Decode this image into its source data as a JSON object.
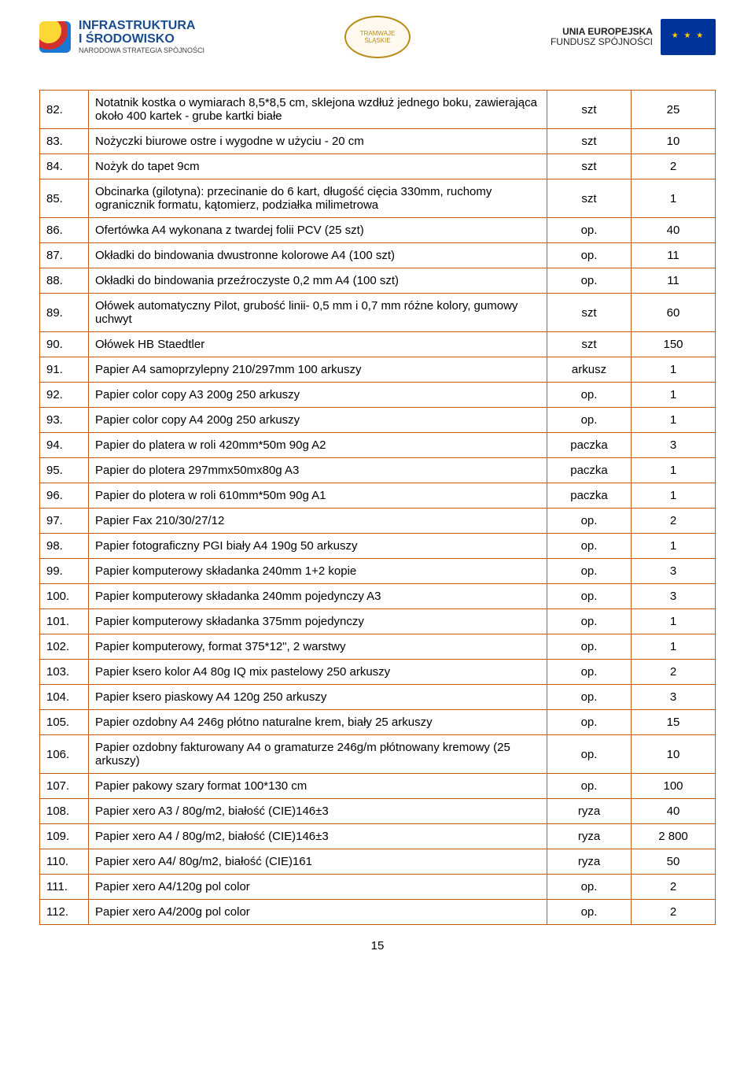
{
  "header": {
    "left": {
      "title_line1": "INFRASTRUKTURA",
      "title_line2": "I ŚRODOWISKO",
      "subtitle": "NARODOWA STRATEGIA SPÓJNOŚCI"
    },
    "center": {
      "label": "TRAMWAJE ŚLĄSKIE"
    },
    "right": {
      "line1": "UNIA EUROPEJSKA",
      "line2": "FUNDUSZ SPÓJNOŚCI"
    }
  },
  "table": {
    "rows": [
      {
        "num": "82.",
        "desc": "Notatnik kostka o wymiarach 8,5*8,5 cm, sklejona wzdłuż jednego boku, zawierająca około 400 kartek - grube kartki białe",
        "unit": "szt",
        "qty": "25"
      },
      {
        "num": "83.",
        "desc": "Nożyczki biurowe ostre i wygodne w użyciu - 20 cm",
        "unit": "szt",
        "qty": "10"
      },
      {
        "num": "84.",
        "desc": "Nożyk do tapet 9cm",
        "unit": "szt",
        "qty": "2"
      },
      {
        "num": "85.",
        "desc": "Obcinarka (gilotyna): przecinanie do 6 kart, długość cięcia 330mm, ruchomy ogranicznik formatu, kątomierz, podziałka milimetrowa",
        "unit": "szt",
        "qty": "1"
      },
      {
        "num": "86.",
        "desc": "Ofertówka A4 wykonana z twardej folii PCV (25 szt)",
        "unit": "op.",
        "qty": "40"
      },
      {
        "num": "87.",
        "desc": "Okładki do bindowania dwustronne kolorowe A4 (100 szt)",
        "unit": "op.",
        "qty": "11"
      },
      {
        "num": "88.",
        "desc": "Okładki do bindowania przeźroczyste 0,2 mm A4 (100 szt)",
        "unit": "op.",
        "qty": "11"
      },
      {
        "num": "89.",
        "desc": "Ołówek automatyczny Pilot, grubość linii- 0,5 mm i 0,7 mm  różne kolory, gumowy uchwyt",
        "unit": "szt",
        "qty": "60"
      },
      {
        "num": "90.",
        "desc": "Ołówek HB Staedtler",
        "unit": "szt",
        "qty": "150"
      },
      {
        "num": "91.",
        "desc": "Papier A4 samoprzylepny 210/297mm  100 arkuszy",
        "unit": "arkusz",
        "qty": "1"
      },
      {
        "num": "92.",
        "desc": "Papier color copy  A3 200g  250 arkuszy",
        "unit": "op.",
        "qty": "1"
      },
      {
        "num": "93.",
        "desc": "Papier color copy  A4 200g  250 arkuszy",
        "unit": "op.",
        "qty": "1"
      },
      {
        "num": "94.",
        "desc": "Papier do platera w roli 420mm*50m 90g   A2",
        "unit": "paczka",
        "qty": "3"
      },
      {
        "num": "95.",
        "desc": "Papier do plotera  297mmx50mx80g   A3",
        "unit": "paczka",
        "qty": "1"
      },
      {
        "num": "96.",
        "desc": "Papier do plotera w roli 610mm*50m 90g   A1",
        "unit": "paczka",
        "qty": "1"
      },
      {
        "num": "97.",
        "desc": "Papier Fax 210/30/27/12",
        "unit": "op.",
        "qty": "2"
      },
      {
        "num": "98.",
        "desc": "Papier fotograficzny PGI biały A4  190g  50 arkuszy",
        "unit": "op.",
        "qty": "1"
      },
      {
        "num": "99.",
        "desc": "Papier komputerowy składanka 240mm 1+2 kopie",
        "unit": "op.",
        "qty": "3"
      },
      {
        "num": "100.",
        "desc": "Papier komputerowy składanka 240mm pojedynczy A3",
        "unit": "op.",
        "qty": "3"
      },
      {
        "num": "101.",
        "desc": "Papier komputerowy składanka 375mm pojedynczy",
        "unit": "op.",
        "qty": "1"
      },
      {
        "num": "102.",
        "desc": "Papier komputerowy, format 375*12\", 2 warstwy",
        "unit": "op.",
        "qty": "1"
      },
      {
        "num": "103.",
        "desc": "Papier ksero kolor A4 80g IQ mix pastelowy  250 arkuszy",
        "unit": "op.",
        "qty": "2"
      },
      {
        "num": "104.",
        "desc": "Papier ksero piaskowy  A4  120g  250 arkuszy",
        "unit": "op.",
        "qty": "3"
      },
      {
        "num": "105.",
        "desc": "Papier ozdobny A4  246g  płótno naturalne krem, biały  25 arkuszy",
        "unit": "op.",
        "qty": "15"
      },
      {
        "num": "106.",
        "desc": "Papier ozdobny fakturowany A4 o gramaturze 246g/m płótnowany kremowy (25 arkuszy)",
        "unit": "op.",
        "qty": "10"
      },
      {
        "num": "107.",
        "desc": "Papier pakowy szary format 100*130 cm",
        "unit": "op.",
        "qty": "100"
      },
      {
        "num": "108.",
        "desc": "Papier xero A3 / 80g/m2, białość (CIE)146±3",
        "unit": "ryza",
        "qty": "40"
      },
      {
        "num": "109.",
        "desc": "Papier xero A4 / 80g/m2, białość (CIE)146±3",
        "unit": "ryza",
        "qty": "2 800"
      },
      {
        "num": "110.",
        "desc": "Papier xero A4/ 80g/m2, białość (CIE)161",
        "unit": "ryza",
        "qty": "50"
      },
      {
        "num": "111.",
        "desc": "Papier xero A4/120g pol color",
        "unit": "op.",
        "qty": "2"
      },
      {
        "num": "112.",
        "desc": "Papier xero A4/200g pol color",
        "unit": "op.",
        "qty": "2"
      }
    ]
  },
  "page_number": "15",
  "colors": {
    "border": "#c55a11",
    "infra_text": "#1a4d8f",
    "eu_blue": "#003399",
    "eu_yellow": "#ffcc00"
  }
}
